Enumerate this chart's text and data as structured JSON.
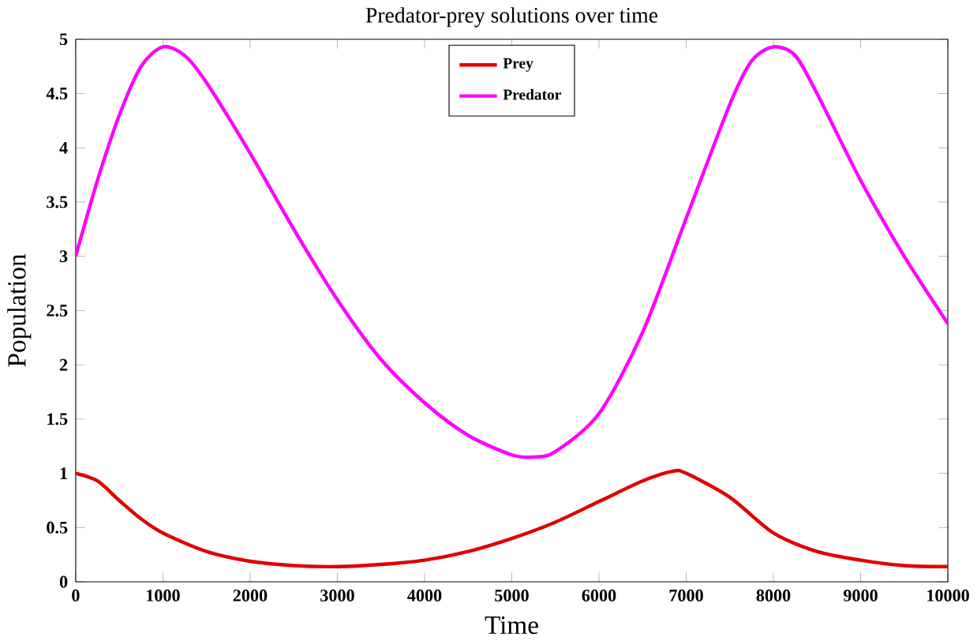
{
  "chart_data": {
    "type": "line",
    "title": "Predator-prey solutions over time",
    "xlabel": "Time",
    "ylabel": "Population",
    "xlim": [
      0,
      10000
    ],
    "ylim": [
      0,
      5
    ],
    "xticks": [
      0,
      1000,
      2000,
      3000,
      4000,
      5000,
      6000,
      7000,
      8000,
      9000,
      10000
    ],
    "yticks": [
      0,
      0.5,
      1,
      1.5,
      2,
      2.5,
      3,
      3.5,
      4,
      4.5,
      5
    ],
    "legend": "top",
    "grid": false,
    "marker": "none",
    "line_style": "solid",
    "series": [
      {
        "name": "Prey",
        "color": "#e00000",
        "x": [
          0,
          250,
          500,
          750,
          1000,
          1500,
          2000,
          2500,
          3000,
          3500,
          4000,
          4500,
          5000,
          5500,
          6000,
          6500,
          6850,
          7000,
          7500,
          8000,
          8500,
          9000,
          9500,
          10000
        ],
        "values": [
          1.0,
          0.93,
          0.75,
          0.58,
          0.45,
          0.28,
          0.19,
          0.15,
          0.14,
          0.16,
          0.2,
          0.28,
          0.4,
          0.55,
          0.74,
          0.93,
          1.02,
          1.0,
          0.78,
          0.45,
          0.28,
          0.2,
          0.15,
          0.14
        ]
      },
      {
        "name": "Predator",
        "color": "#ff00ff",
        "x": [
          0,
          250,
          500,
          750,
          1000,
          1250,
          1500,
          2000,
          2500,
          3000,
          3500,
          4000,
          4500,
          5000,
          5250,
          5500,
          6000,
          6500,
          7000,
          7500,
          7750,
          8000,
          8250,
          8500,
          9000,
          9500,
          10000
        ],
        "values": [
          3.0,
          3.7,
          4.3,
          4.75,
          4.93,
          4.85,
          4.6,
          3.95,
          3.25,
          2.6,
          2.05,
          1.65,
          1.35,
          1.17,
          1.15,
          1.2,
          1.55,
          2.3,
          3.35,
          4.4,
          4.8,
          4.93,
          4.85,
          4.5,
          3.7,
          3.0,
          2.38
        ]
      }
    ]
  }
}
